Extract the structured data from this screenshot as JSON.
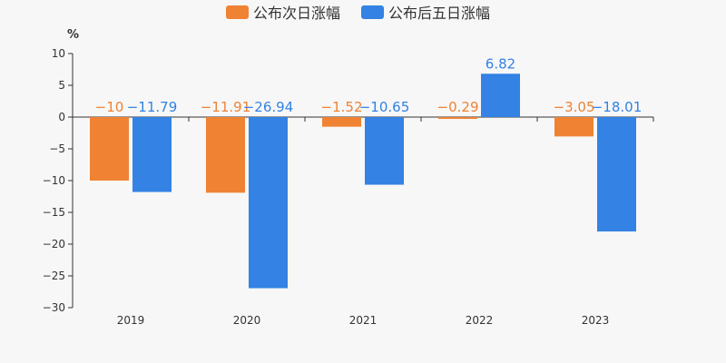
{
  "chart_data": {
    "type": "bar",
    "unit": "%",
    "categories": [
      "2019",
      "2020",
      "2021",
      "2022",
      "2023"
    ],
    "series": [
      {
        "name": "公布次日涨幅",
        "color": "#f08233",
        "values": [
          -10,
          -11.91,
          -1.52,
          -0.29,
          -3.05
        ],
        "labels": [
          "−10",
          "−11.91",
          "−1.52",
          "−0.29",
          "−3.05"
        ]
      },
      {
        "name": "公布后五日涨幅",
        "color": "#3382e4",
        "values": [
          -11.79,
          -26.94,
          -10.65,
          6.82,
          -18.01
        ],
        "labels": [
          "−11.79",
          "−26.94",
          "−10.65",
          "6.82",
          "−18.01"
        ]
      }
    ],
    "yticks": [
      10,
      5,
      0,
      -5,
      -10,
      -15,
      -20,
      -25,
      -30
    ],
    "ytick_labels": [
      "10",
      "5",
      "0",
      "−5",
      "−10",
      "−15",
      "−20",
      "−25",
      "−30"
    ],
    "ylim": [
      -30,
      10
    ],
    "legend_position": "top-center",
    "grid": false
  }
}
